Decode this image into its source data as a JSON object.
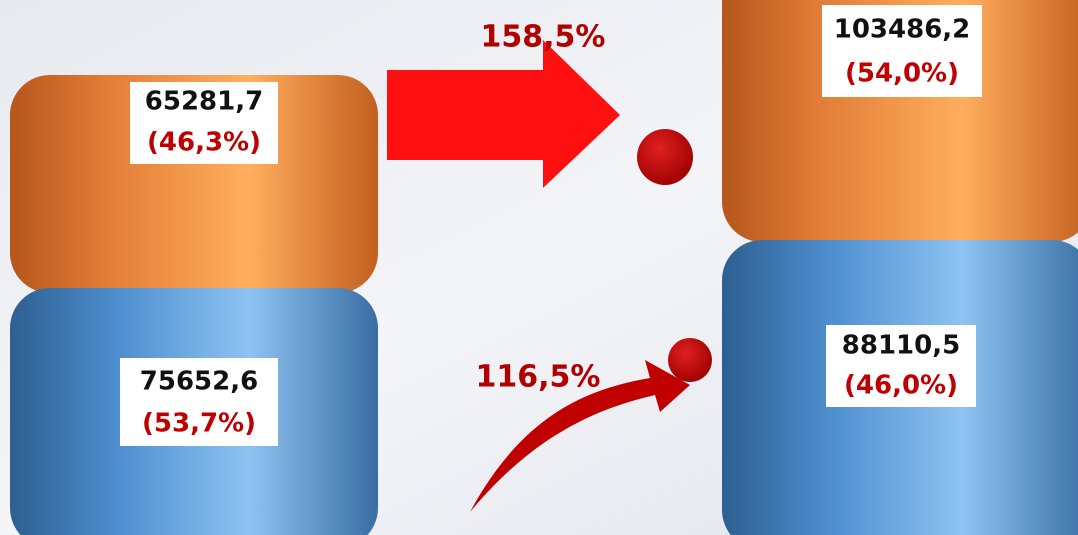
{
  "columns": [
    {
      "segments": [
        {
          "value": "65281,7",
          "share": "(46,3%)"
        },
        {
          "value": "75652,6",
          "share": "(53,7%)"
        }
      ]
    },
    {
      "segments": [
        {
          "value": "103486,2",
          "share": "(54,0%)"
        },
        {
          "value": "88110,5",
          "share": "(46,0%)"
        }
      ]
    }
  ],
  "growth": [
    {
      "label": "158,5%"
    },
    {
      "label": "116,5%"
    }
  ]
}
